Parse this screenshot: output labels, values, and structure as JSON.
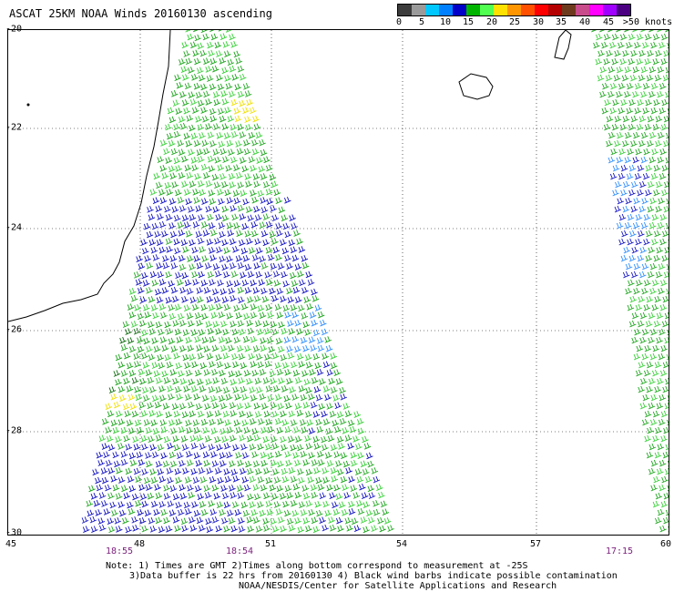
{
  "title": "ASCAT 25KM NOAA Winds 20160130 ascending",
  "legend": {
    "colors": [
      "#3c3c3c",
      "#9a9a9a",
      "#00c8ff",
      "#0080ff",
      "#0000c8",
      "#00b400",
      "#50ff50",
      "#ffe100",
      "#ff9600",
      "#ff5000",
      "#ff0000",
      "#b40000",
      "#6e3a1e",
      "#c84b8c",
      "#ff00ff",
      "#a000ff",
      "#4b0082"
    ],
    "labels": [
      "0",
      "5",
      "10",
      "15",
      "20",
      "25",
      "30",
      "35",
      "40",
      "45",
      ">50 knots"
    ]
  },
  "axes": {
    "y_labels": [
      "-20",
      "-22",
      "-24",
      "-26",
      "-28",
      "-30"
    ],
    "x_labels": [
      "45",
      "48",
      "51",
      "54",
      "57",
      "60"
    ]
  },
  "times": [
    "18:55",
    "18:54",
    "17:15"
  ],
  "notes": [
    "Note: 1) Times are GMT 2)Times along bottom correspond to measurement at -25S",
    "3)Data buffer is 22 hrs from 20160130 4) Black wind barbs indicate possible contamination",
    "NOAA/NESDIS/Center for Satellite Applications and Research"
  ],
  "colors": {
    "green": "#1aa51a",
    "light_green": "#35d035",
    "blue": "#1010c0",
    "light_blue": "#2a8cff",
    "dark_green": "#0a6a0a",
    "yellow": "#f0e000",
    "coast": "#000000",
    "grid": "#000000"
  }
}
